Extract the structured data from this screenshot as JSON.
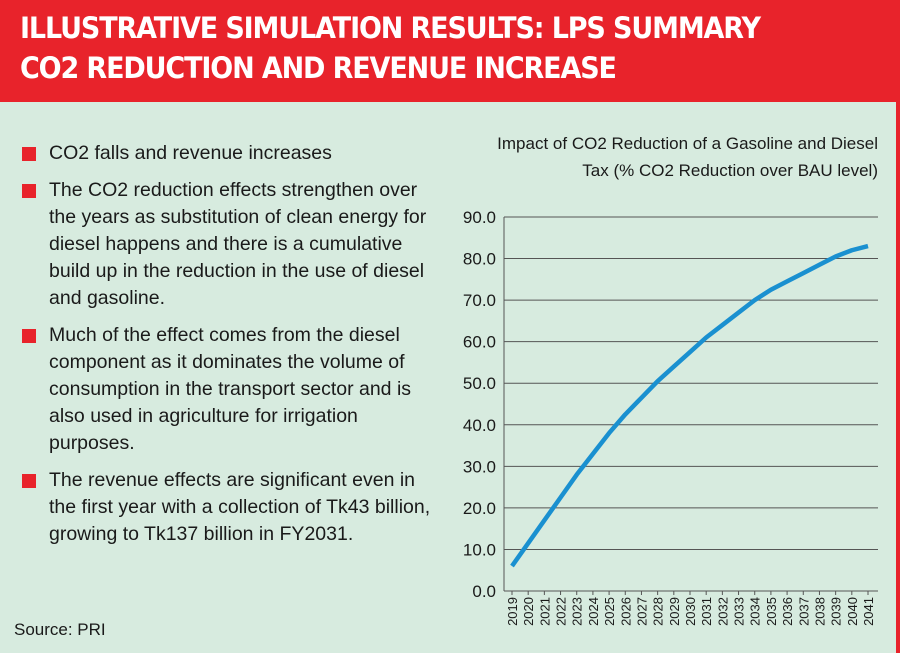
{
  "header": {
    "line1": "ILLUSTRATIVE SIMULATION RESULTS: LPS SUMMARY",
    "line2": "CO2 REDUCTION AND REVENUE INCREASE"
  },
  "bullets": [
    "CO2 falls and revenue increases",
    "The CO2 reduction effects strengthen over the years as substitution of clean energy for diesel happens and there is a cumulative build up in the reduction in the use of diesel and gasoline.",
    "Much of the effect comes from the diesel component as it dominates the volume of consumption in the transport sector and is also used in agriculture for irrigation purposes.",
    "The revenue effects are significant even in the first year with a collection of Tk43 billion, growing to Tk137 billion in FY2031."
  ],
  "source": "Source: PRI",
  "colors": {
    "accent": "#e8232b",
    "background": "#d7ebdf",
    "line": "#1a90d0"
  },
  "chart_data": {
    "type": "line",
    "title_line1": "Impact of CO2 Reduction of a Gasoline and Diesel",
    "title_line2": "Tax (% CO2 Reduction over BAU level)",
    "xlabel": "",
    "ylabel": "",
    "ylim": [
      0,
      90
    ],
    "yticks": [
      "0.0",
      "10.0",
      "20.0",
      "30.0",
      "40.0",
      "50.0",
      "60.0",
      "70.0",
      "80.0",
      "90.0"
    ],
    "grid": true,
    "x": [
      "2019",
      "2020",
      "2021",
      "2022",
      "2023",
      "2024",
      "2025",
      "2026",
      "2027",
      "2028",
      "2029",
      "2030",
      "2031",
      "2032",
      "2033",
      "2034",
      "2035",
      "2036",
      "2037",
      "2038",
      "2039",
      "2040",
      "2041"
    ],
    "series": [
      {
        "name": "CO2 reduction",
        "values": [
          6,
          11.5,
          17,
          22.5,
          28,
          33,
          38,
          42.5,
          46.5,
          50.5,
          54,
          57.5,
          61,
          64,
          67,
          70,
          72.5,
          74.5,
          76.5,
          78.5,
          80.5,
          82,
          83
        ]
      }
    ]
  }
}
